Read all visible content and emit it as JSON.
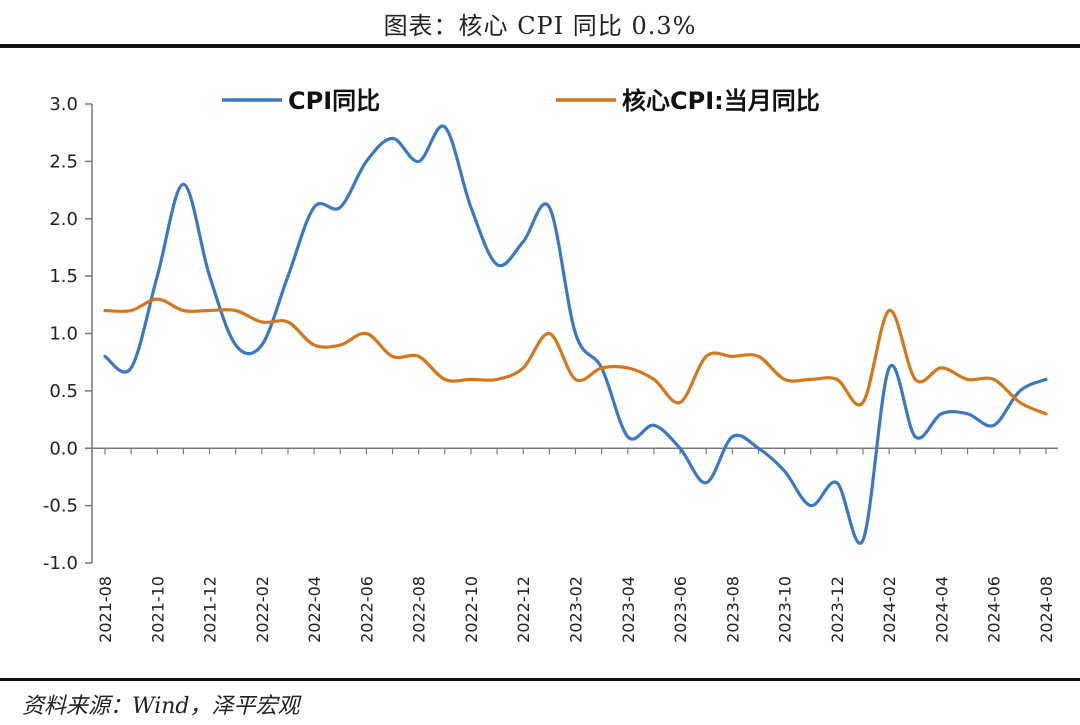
{
  "header": {
    "title": "图表：核心 CPI 同比 0.3%"
  },
  "footer": {
    "source": "资料来源：Wind，泽平宏观"
  },
  "chart_data": {
    "type": "line",
    "title": "",
    "xlabel": "",
    "ylabel": "",
    "ylim": [
      -1.0,
      3.0
    ],
    "yticks": [
      "3.0",
      "2.5",
      "2.0",
      "1.5",
      "1.0",
      "0.5",
      "0.0",
      "-0.5",
      "-1.0"
    ],
    "x": [
      "2021-08",
      "2021-09",
      "2021-10",
      "2021-11",
      "2021-12",
      "2022-01",
      "2022-02",
      "2022-03",
      "2022-04",
      "2022-05",
      "2022-06",
      "2022-07",
      "2022-08",
      "2022-09",
      "2022-10",
      "2022-11",
      "2022-12",
      "2023-01",
      "2023-02",
      "2023-03",
      "2023-04",
      "2023-05",
      "2023-06",
      "2023-07",
      "2023-08",
      "2023-09",
      "2023-10",
      "2023-11",
      "2023-12",
      "2024-01",
      "2024-02",
      "2024-03",
      "2024-04",
      "2024-05",
      "2024-06",
      "2024-07",
      "2024-08"
    ],
    "xtick_labels": [
      "2021-08",
      "2021-10",
      "2021-12",
      "2022-02",
      "2022-04",
      "2022-06",
      "2022-08",
      "2022-10",
      "2022-12",
      "2023-02",
      "2023-04",
      "2023-06",
      "2023-08",
      "2023-10",
      "2023-12",
      "2024-02",
      "2024-04",
      "2024-06",
      "2024-08"
    ],
    "grid": false,
    "legend_position": "top",
    "series": [
      {
        "name": "CPI同比",
        "color": "#3a78c3",
        "values": [
          0.8,
          0.7,
          1.5,
          2.3,
          1.5,
          0.9,
          0.9,
          1.5,
          2.1,
          2.1,
          2.5,
          2.7,
          2.5,
          2.8,
          2.1,
          1.6,
          1.8,
          2.1,
          1.0,
          0.7,
          0.1,
          0.2,
          0.0,
          -0.3,
          0.1,
          0.0,
          -0.2,
          -0.5,
          -0.3,
          -0.8,
          0.7,
          0.1,
          0.3,
          0.3,
          0.2,
          0.5,
          0.6
        ]
      },
      {
        "name": "核心CPI:当月同比",
        "color": "#d4771a",
        "values": [
          1.2,
          1.2,
          1.3,
          1.2,
          1.2,
          1.2,
          1.1,
          1.1,
          0.9,
          0.9,
          1.0,
          0.8,
          0.8,
          0.6,
          0.6,
          0.6,
          0.7,
          1.0,
          0.6,
          0.7,
          0.7,
          0.6,
          0.4,
          0.8,
          0.8,
          0.8,
          0.6,
          0.6,
          0.6,
          0.4,
          1.2,
          0.6,
          0.7,
          0.6,
          0.6,
          0.4,
          0.3
        ]
      }
    ]
  }
}
